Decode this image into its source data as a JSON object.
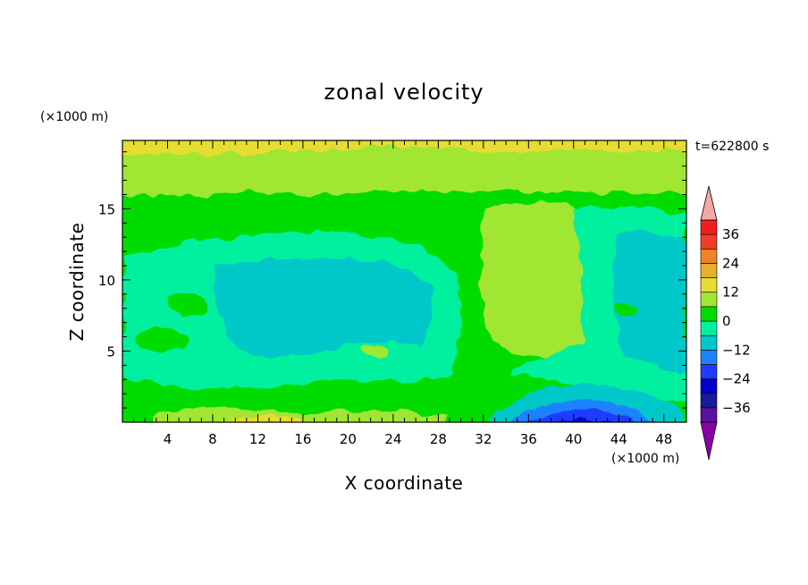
{
  "chart_data": {
    "type": "heatmap",
    "title": "zonal velocity",
    "xlabel": "X coordinate",
    "ylabel": "Z coordinate",
    "x_unit": "(×1000 m)",
    "y_unit": "(×1000 m)",
    "time_label": "t=622800 s",
    "xlim": [
      0,
      50
    ],
    "ylim": [
      0,
      19.8
    ],
    "x_ticks": [
      4,
      8,
      12,
      16,
      20,
      24,
      28,
      32,
      36,
      40,
      44,
      48
    ],
    "y_ticks": [
      5,
      10,
      15
    ],
    "colorbar": {
      "ticks": [
        36,
        24,
        12,
        0,
        -12,
        -24,
        -36
      ],
      "levels": [
        -42,
        -36,
        -30,
        -24,
        -18,
        -12,
        -6,
        0,
        6,
        12,
        18,
        24,
        30,
        36,
        42
      ],
      "colors": [
        "#8c00a8",
        "#5a10a0",
        "#1a1a9a",
        "#0000cc",
        "#1e3cff",
        "#1e82ff",
        "#00c8c8",
        "#00f0a0",
        "#00dc00",
        "#a0e632",
        "#e6dc32",
        "#e6af2d",
        "#f08228",
        "#f03c28",
        "#f01e1e",
        "#f4a8a8"
      ],
      "extend": "both"
    },
    "grid": false
  }
}
